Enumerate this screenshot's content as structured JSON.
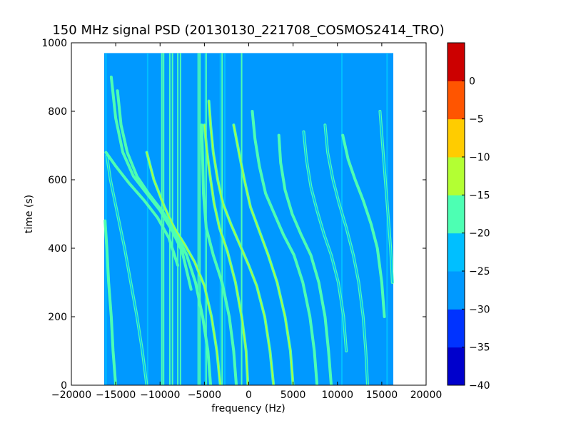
{
  "chart_data": {
    "type": "heatmap",
    "title": "150 MHz signal PSD (20130130_221708_COSMOS2414_TRO)",
    "xlabel": "frequency (Hz)",
    "ylabel": "time (s)",
    "xlim": [
      -20000,
      20000
    ],
    "ylim": [
      0,
      1000
    ],
    "x_ticks": [
      -20000,
      -15000,
      -10000,
      -5000,
      0,
      5000,
      10000,
      15000,
      20000
    ],
    "x_tick_labels": [
      "−20000",
      "−15000",
      "−10000",
      "−5000",
      "0",
      "5000",
      "10000",
      "15000",
      "20000"
    ],
    "y_ticks": [
      0,
      200,
      400,
      600,
      800,
      1000
    ],
    "y_tick_labels": [
      "0",
      "200",
      "400",
      "600",
      "800",
      "1000"
    ],
    "data_extent": {
      "freq": [
        -16300,
        16300
      ],
      "time": [
        0,
        970
      ]
    },
    "background_level": -27.5,
    "colorbar": {
      "levels": [
        -40,
        -35,
        -30,
        -25,
        -20,
        -15,
        -10,
        -5,
        0
      ],
      "tick_labels": [
        "−40",
        "−35",
        "−30",
        "−25",
        "−20",
        "−15",
        "−10",
        "−5",
        "0"
      ],
      "colors": [
        "#0000cc",
        "#0033ff",
        "#0099ff",
        "#00bfff",
        "#4dffb3",
        "#b3ff33",
        "#ffcc00",
        "#ff5500",
        "#cc0000"
      ]
    },
    "vertical_lines": [
      {
        "freq": -16100,
        "level": -22.5
      },
      {
        "freq": -11400,
        "level": -22.5
      },
      {
        "freq": -9800,
        "level": -17.5
      },
      {
        "freq": -9600,
        "level": -17.5
      },
      {
        "freq": -8900,
        "level": -17.5
      },
      {
        "freq": -8600,
        "level": -17.5
      },
      {
        "freq": -8000,
        "level": -17.5
      },
      {
        "freq": -7700,
        "level": -17.5
      },
      {
        "freq": -5700,
        "level": -17.5
      },
      {
        "freq": -5500,
        "level": -17.5
      },
      {
        "freq": -4900,
        "level": -22.5
      },
      {
        "freq": -4800,
        "level": -17.5
      },
      {
        "freq": -3000,
        "level": -17.5
      },
      {
        "freq": -3200,
        "level": -22.5
      },
      {
        "freq": -2700,
        "level": -22.5
      },
      {
        "freq": -800,
        "level": -17.5
      },
      {
        "freq": 10500,
        "level": -22.5
      },
      {
        "freq": 15600,
        "level": -22.5
      }
    ],
    "tracks": [
      {
        "f0": -15000,
        "t0": 0,
        "level": -17.5,
        "points": [
          [
            -15000,
            0
          ],
          [
            -15300,
            100
          ],
          [
            -15500,
            200
          ],
          [
            -15800,
            300
          ],
          [
            -16000,
            400
          ],
          [
            -16200,
            480
          ]
        ]
      },
      {
        "f0": -11500,
        "t0": 0,
        "level": -22.5,
        "points": [
          [
            -11500,
            0
          ],
          [
            -12000,
            100
          ],
          [
            -12600,
            200
          ],
          [
            -13300,
            300
          ],
          [
            -14000,
            400
          ],
          [
            -14800,
            500
          ],
          [
            -15600,
            600
          ],
          [
            -16000,
            670
          ]
        ]
      },
      {
        "f0": -9000,
        "t0": 0,
        "level": -17.5,
        "points": [
          [
            -8000,
            350
          ],
          [
            -9000,
            430
          ],
          [
            -10300,
            490
          ],
          [
            -11800,
            540
          ],
          [
            -13500,
            590
          ],
          [
            -15000,
            640
          ],
          [
            -16100,
            680
          ]
        ]
      },
      {
        "f0": -6700,
        "t0": 0,
        "level": -17.5,
        "points": [
          [
            -6500,
            280
          ],
          [
            -7500,
            390
          ],
          [
            -8600,
            450
          ],
          [
            -10000,
            510
          ],
          [
            -11500,
            560
          ],
          [
            -13000,
            610
          ],
          [
            -14200,
            680
          ],
          [
            -15000,
            780
          ],
          [
            -15500,
            900
          ]
        ]
      },
      {
        "f0": -5000,
        "t0": 0,
        "level": -17.5,
        "points": [
          [
            -4300,
            0
          ],
          [
            -4600,
            100
          ],
          [
            -5200,
            200
          ],
          [
            -6000,
            300
          ],
          [
            -7000,
            380
          ],
          [
            -8300,
            450
          ],
          [
            -9800,
            510
          ],
          [
            -11300,
            560
          ],
          [
            -12600,
            610
          ],
          [
            -13700,
            680
          ],
          [
            -14400,
            760
          ],
          [
            -14800,
            860
          ]
        ]
      },
      {
        "f0": -3500,
        "t0": 0,
        "level": -12.5,
        "points": [
          [
            -3200,
            0
          ],
          [
            -3600,
            100
          ],
          [
            -4200,
            200
          ],
          [
            -5000,
            290
          ],
          [
            -6100,
            360
          ],
          [
            -7200,
            410
          ],
          [
            -8400,
            460
          ],
          [
            -9500,
            520
          ],
          [
            -10700,
            600
          ],
          [
            -11500,
            680
          ]
        ]
      },
      {
        "f0": -1500,
        "t0": 0,
        "level": -17.5,
        "points": [
          [
            -1400,
            0
          ],
          [
            -1700,
            100
          ],
          [
            -2200,
            200
          ],
          [
            -3000,
            300
          ],
          [
            -4000,
            380
          ],
          [
            -4800,
            460
          ],
          [
            -5100,
            560
          ],
          [
            -5200,
            660
          ],
          [
            -5300,
            760
          ]
        ]
      },
      {
        "f0": 0,
        "t0": 0,
        "level": -12.5,
        "points": [
          [
            -100,
            0
          ],
          [
            -300,
            100
          ],
          [
            -800,
            200
          ],
          [
            -1500,
            300
          ],
          [
            -2400,
            390
          ],
          [
            -3300,
            460
          ],
          [
            -3900,
            530
          ],
          [
            -4300,
            600
          ],
          [
            -4700,
            680
          ],
          [
            -5000,
            760
          ]
        ]
      },
      {
        "f0": 3000,
        "t0": 0,
        "level": -12.5,
        "points": [
          [
            2800,
            0
          ],
          [
            2400,
            100
          ],
          [
            1800,
            200
          ],
          [
            900,
            290
          ],
          [
            0,
            350
          ],
          [
            -1000,
            410
          ],
          [
            -2000,
            470
          ],
          [
            -2900,
            530
          ],
          [
            -3500,
            600
          ],
          [
            -4000,
            680
          ],
          [
            -4300,
            760
          ],
          [
            -4500,
            830
          ]
        ]
      },
      {
        "f0": 5000,
        "t0": 0,
        "level": -12.5,
        "points": [
          [
            5000,
            0
          ],
          [
            4700,
            100
          ],
          [
            4100,
            200
          ],
          [
            3200,
            300
          ],
          [
            2200,
            380
          ],
          [
            1200,
            450
          ],
          [
            200,
            520
          ],
          [
            -500,
            600
          ],
          [
            -1100,
            680
          ],
          [
            -1700,
            760
          ]
        ]
      },
      {
        "f0": 7500,
        "t0": 0,
        "level": -17.5,
        "points": [
          [
            7700,
            0
          ],
          [
            7400,
            100
          ],
          [
            6900,
            200
          ],
          [
            6100,
            300
          ],
          [
            5100,
            380
          ],
          [
            3900,
            440
          ],
          [
            2900,
            500
          ],
          [
            1900,
            560
          ],
          [
            1200,
            640
          ],
          [
            700,
            720
          ],
          [
            400,
            800
          ]
        ]
      },
      {
        "f0": 9000,
        "t0": 0,
        "level": -17.5,
        "points": [
          [
            9300,
            0
          ],
          [
            9000,
            100
          ],
          [
            8600,
            200
          ],
          [
            7900,
            300
          ],
          [
            7000,
            380
          ],
          [
            5900,
            440
          ],
          [
            4900,
            500
          ],
          [
            4100,
            570
          ],
          [
            3600,
            650
          ],
          [
            3400,
            730
          ]
        ]
      },
      {
        "f0": 10500,
        "t0": 0,
        "level": -22.5,
        "points": [
          [
            11000,
            100
          ],
          [
            10700,
            200
          ],
          [
            10100,
            300
          ],
          [
            9300,
            380
          ],
          [
            8500,
            440
          ],
          [
            7700,
            510
          ],
          [
            7000,
            580
          ],
          [
            6500,
            660
          ],
          [
            6200,
            740
          ]
        ]
      },
      {
        "f0": 13000,
        "t0": 0,
        "level": -22.5,
        "points": [
          [
            13400,
            0
          ],
          [
            13200,
            100
          ],
          [
            12900,
            200
          ],
          [
            12400,
            300
          ],
          [
            11800,
            380
          ],
          [
            11000,
            460
          ],
          [
            10200,
            530
          ],
          [
            9500,
            600
          ],
          [
            8900,
            680
          ],
          [
            8600,
            760
          ]
        ]
      },
      {
        "f0": 15000,
        "t0": 0,
        "level": -17.5,
        "points": [
          [
            15300,
            200
          ],
          [
            15000,
            300
          ],
          [
            14500,
            400
          ],
          [
            13800,
            470
          ],
          [
            12900,
            540
          ],
          [
            12000,
            600
          ],
          [
            11200,
            660
          ],
          [
            10600,
            730
          ]
        ]
      },
      {
        "f0": 16000,
        "t0": 0,
        "level": -22.5,
        "points": [
          [
            16200,
            300
          ],
          [
            16000,
            400
          ],
          [
            15700,
            500
          ],
          [
            15400,
            600
          ],
          [
            15100,
            700
          ],
          [
            14800,
            800
          ]
        ]
      }
    ]
  }
}
